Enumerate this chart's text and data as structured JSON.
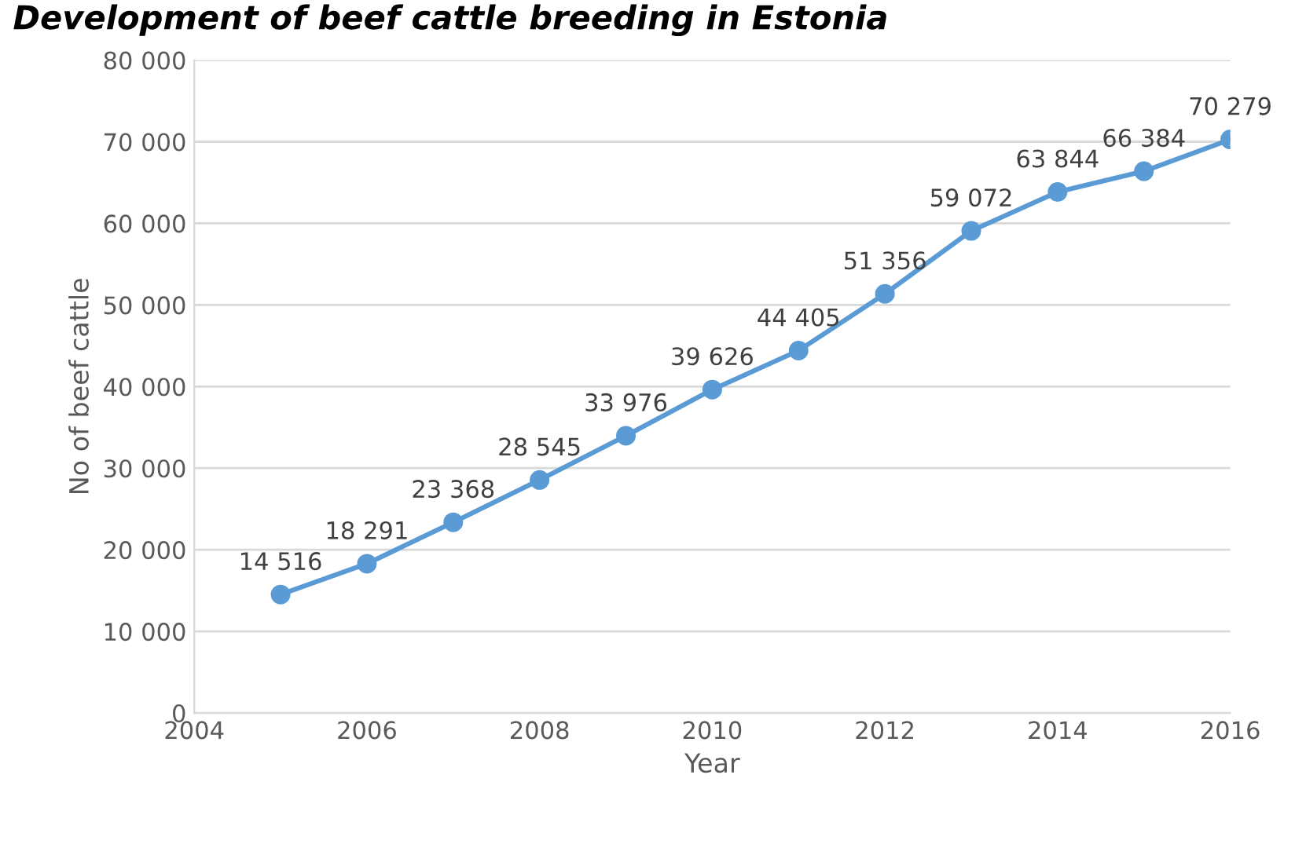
{
  "chart_data": {
    "type": "line",
    "title": "Development of beef cattle breeding in Estonia",
    "xlabel": "Year",
    "ylabel": "No of beef cattle",
    "x": [
      2005,
      2006,
      2007,
      2008,
      2009,
      2010,
      2011,
      2012,
      2013,
      2014,
      2015,
      2016
    ],
    "series": [
      {
        "color": "#5b9bd5",
        "values": [
          14516,
          18291,
          23368,
          28545,
          33976,
          39626,
          44405,
          51356,
          59072,
          63844,
          66384,
          70279
        ],
        "value_labels": [
          "14 516",
          "18 291",
          "23 368",
          "28 545",
          "33 976",
          "39 626",
          "44 405",
          "51 356",
          "59 072",
          "63 844",
          "66 384",
          "70 279"
        ]
      }
    ],
    "xlim": [
      2004,
      2016
    ],
    "xticks": [
      2004,
      2006,
      2008,
      2010,
      2012,
      2014,
      2016
    ],
    "ylim": [
      0,
      80000
    ],
    "yticks": [
      {
        "value": 0,
        "label": "0"
      },
      {
        "value": 10000,
        "label": "10 000"
      },
      {
        "value": 20000,
        "label": "20 000"
      },
      {
        "value": 30000,
        "label": "30 000"
      },
      {
        "value": 40000,
        "label": "40 000"
      },
      {
        "value": 50000,
        "label": "50 000"
      },
      {
        "value": 60000,
        "label": "60 000"
      },
      {
        "value": 70000,
        "label": "70 000"
      },
      {
        "value": 80000,
        "label": "80 000"
      }
    ],
    "grid": "y",
    "marker": "circle",
    "line_style": "solid",
    "legend": false
  }
}
